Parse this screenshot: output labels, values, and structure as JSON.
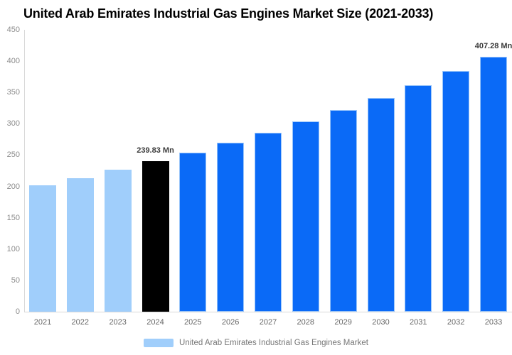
{
  "chart_data": {
    "type": "bar",
    "title": "United Arab Emirates Industrial Gas Engines Market Size (2021-2033)",
    "categories": [
      "2021",
      "2022",
      "2023",
      "2024",
      "2025",
      "2026",
      "2027",
      "2028",
      "2029",
      "2030",
      "2031",
      "2032",
      "2033"
    ],
    "values": [
      201.3,
      213.5,
      226.2,
      239.83,
      254.4,
      269.8,
      286.2,
      303.5,
      321.9,
      341.4,
      362.1,
      384.1,
      407.28
    ],
    "unit": "Mn",
    "xlabel": "",
    "ylabel": "",
    "ylim": [
      0,
      450
    ],
    "yticks": [
      0,
      50,
      100,
      150,
      200,
      250,
      300,
      350,
      400,
      450
    ],
    "grid": false,
    "bar_roles": [
      "past",
      "past",
      "past",
      "current",
      "forecast",
      "forecast",
      "forecast",
      "forecast",
      "forecast",
      "forecast",
      "forecast",
      "forecast",
      "forecast"
    ],
    "data_labels": [
      {
        "category": "2024",
        "text": "239.83 Mn"
      },
      {
        "category": "2033",
        "text": "407.28 Mn"
      }
    ],
    "legend_position": "bottom",
    "legend": [
      "United Arab Emirates Industrial Gas Engines Market"
    ]
  },
  "colors": {
    "past_bar": "#a0cefb",
    "current_bar": "#000000",
    "forecast_bar": "#0a6af7",
    "axis_line": "#d8d8d8",
    "y_tick_label": "#8d8d8d",
    "x_tick_label": "#666666",
    "data_label": "#3b3b3b",
    "legend_text": "#777777",
    "legend_swatch": "#a0cefb",
    "background": "#ffffff"
  }
}
